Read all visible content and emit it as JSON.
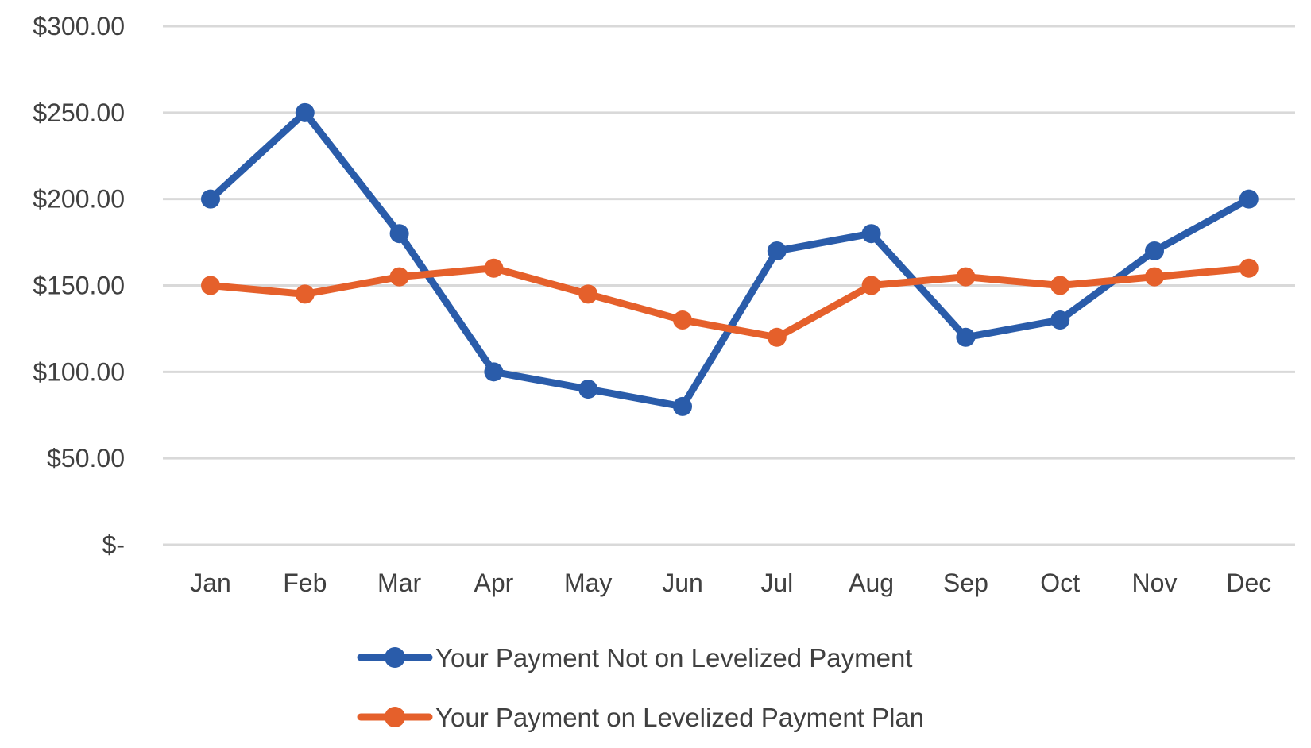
{
  "chart_data": {
    "type": "line",
    "categories": [
      "Jan",
      "Feb",
      "Mar",
      "Apr",
      "May",
      "Jun",
      "Jul",
      "Aug",
      "Sep",
      "Oct",
      "Nov",
      "Dec"
    ],
    "series": [
      {
        "name": "Your Payment Not on Levelized Payment",
        "color": "#2a5caa",
        "values": [
          200,
          250,
          180,
          100,
          90,
          80,
          170,
          180,
          120,
          130,
          170,
          200
        ]
      },
      {
        "name": "Your Payment on Levelized Payment Plan",
        "color": "#e5602b",
        "values": [
          150,
          145,
          155,
          160,
          145,
          130,
          120,
          150,
          155,
          150,
          155,
          160
        ]
      }
    ],
    "y_ticks": [
      {
        "value": 0,
        "label": "$-"
      },
      {
        "value": 50,
        "label": "$50.00"
      },
      {
        "value": 100,
        "label": "$100.00"
      },
      {
        "value": 150,
        "label": "$150.00"
      },
      {
        "value": 200,
        "label": "$200.00"
      },
      {
        "value": 250,
        "label": "$250.00"
      },
      {
        "value": 300,
        "label": "$300.00"
      }
    ],
    "ylim": [
      0,
      300
    ],
    "grid": true,
    "legend_position": "bottom",
    "title": "",
    "xlabel": "",
    "ylabel": ""
  }
}
